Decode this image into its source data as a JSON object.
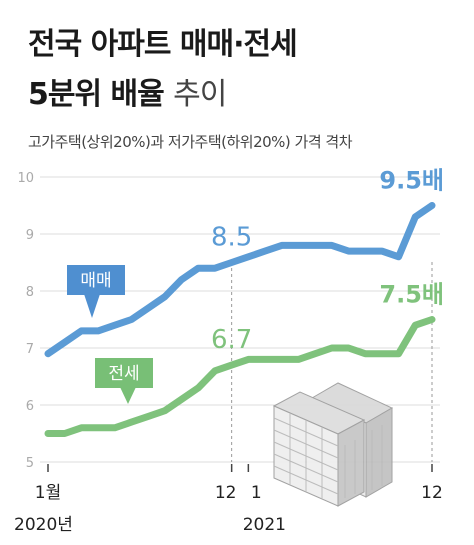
{
  "header": {
    "title_line1": "전국 아파트 매매·전세",
    "title_line2_bold": "5분위 배율",
    "title_line2_light": "추이",
    "subtitle": "고가주택(상위20%)과 저가주택(하위20%) 가격 격차"
  },
  "colors": {
    "sale": "#5b9bd5",
    "jeonse": "#7fc27c",
    "sale_label_bg": "#4f8fd0",
    "jeonse_label_bg": "#78bf76",
    "grid": "#dddddd",
    "axis_text": "#aaaaaa"
  },
  "chart_data": {
    "type": "line",
    "ylim": [
      5,
      10
    ],
    "yticks": [
      "5",
      "6",
      "7",
      "8",
      "9",
      "10"
    ],
    "x": [
      "2020-01",
      "2020-02",
      "2020-03",
      "2020-04",
      "2020-05",
      "2020-06",
      "2020-07",
      "2020-08",
      "2020-09",
      "2020-10",
      "2020-11",
      "2020-12",
      "2021-01",
      "2021-02",
      "2021-03",
      "2021-04",
      "2021-05",
      "2021-06",
      "2021-07",
      "2021-08",
      "2021-09",
      "2021-10",
      "2021-11",
      "2021-12"
    ],
    "xtick_labels": [
      {
        "at": "2020-01",
        "label": "1월"
      },
      {
        "at": "2020-12",
        "label": "12"
      },
      {
        "at": "2021-01",
        "label": "1"
      },
      {
        "at": "2021-12",
        "label": "12"
      }
    ],
    "year_labels": [
      {
        "at": "2020-01",
        "label": "2020년"
      },
      {
        "at": "2021-01",
        "label": "2021"
      }
    ],
    "series": [
      {
        "name": "매매",
        "values": [
          6.9,
          7.1,
          7.3,
          7.3,
          7.4,
          7.5,
          7.7,
          7.9,
          8.2,
          8.4,
          8.4,
          8.5,
          8.6,
          8.7,
          8.8,
          8.8,
          8.8,
          8.8,
          8.7,
          8.7,
          8.7,
          8.6,
          9.3,
          9.5
        ],
        "annotations": [
          {
            "at": "2020-12",
            "text": "8.5"
          },
          {
            "at": "2021-12",
            "text": "9.5배"
          }
        ]
      },
      {
        "name": "전세",
        "values": [
          5.5,
          5.5,
          5.6,
          5.6,
          5.6,
          5.7,
          5.8,
          5.9,
          6.1,
          6.3,
          6.6,
          6.7,
          6.8,
          6.8,
          6.8,
          6.8,
          6.9,
          7.0,
          7.0,
          6.9,
          6.9,
          6.9,
          7.4,
          7.5
        ],
        "annotations": [
          {
            "at": "2020-12",
            "text": "6.7"
          },
          {
            "at": "2021-12",
            "text": "7.5배"
          }
        ]
      }
    ]
  }
}
